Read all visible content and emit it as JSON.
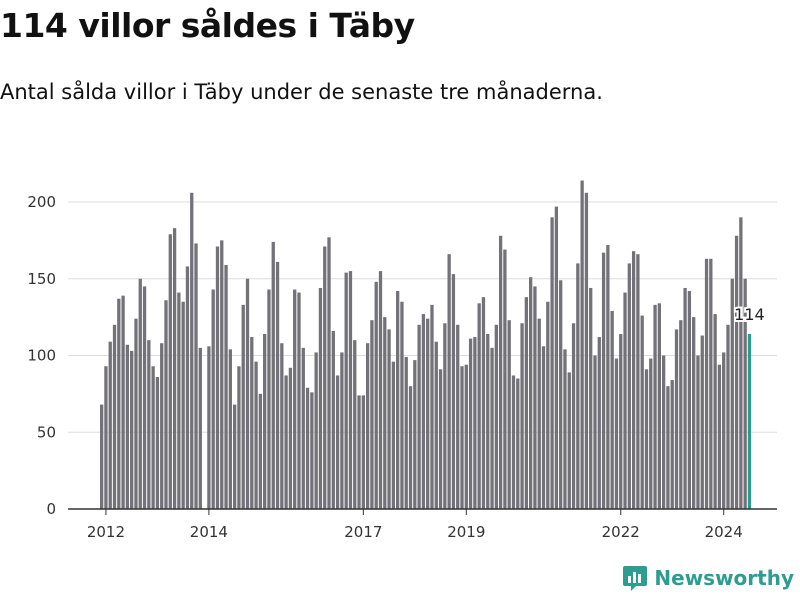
{
  "header": {
    "title": "114 villor såldes i Täby",
    "subtitle": "Antal sålda villor i Täby under de senaste tre månaderna."
  },
  "brand": {
    "name": "Newsworthy"
  },
  "colors": {
    "bar": "#737278",
    "highlight": "#2a9d8f",
    "grid": "#dddddd",
    "axis": "#333333"
  },
  "chart_data": {
    "type": "bar",
    "title": "114 villor såldes i Täby",
    "subtitle": "Antal sålda villor i Täby under de senaste tre månaderna.",
    "xlabel": "",
    "ylabel": "",
    "ylim": [
      0,
      220
    ],
    "yticks": [
      0,
      50,
      100,
      150,
      200
    ],
    "x_start": {
      "year": 2011,
      "month": 12
    },
    "x_ticks": [
      {
        "year": 2012,
        "label": "2012"
      },
      {
        "year": 2014,
        "label": "2014"
      },
      {
        "year": 2017,
        "label": "2017"
      },
      {
        "year": 2019,
        "label": "2019"
      },
      {
        "year": 2022,
        "label": "2022"
      },
      {
        "year": 2024,
        "label": "2024"
      }
    ],
    "highlight_label": "114",
    "values": [
      68,
      93,
      109,
      120,
      137,
      139,
      107,
      103,
      124,
      150,
      145,
      110,
      93,
      86,
      108,
      136,
      179,
      183,
      141,
      135,
      158,
      206,
      173,
      105,
      0,
      106,
      143,
      171,
      175,
      159,
      104,
      68,
      93,
      133,
      150,
      112,
      96,
      75,
      114,
      143,
      174,
      161,
      108,
      87,
      92,
      143,
      141,
      105,
      79,
      76,
      102,
      144,
      171,
      177,
      116,
      87,
      102,
      154,
      155,
      110,
      74,
      74,
      108,
      123,
      148,
      155,
      125,
      117,
      96,
      142,
      135,
      99,
      80,
      97,
      120,
      127,
      124,
      133,
      109,
      91,
      121,
      166,
      153,
      120,
      93,
      94,
      111,
      112,
      134,
      138,
      114,
      105,
      120,
      178,
      169,
      123,
      87,
      85,
      121,
      138,
      151,
      145,
      124,
      106,
      135,
      190,
      197,
      149,
      104,
      89,
      121,
      160,
      214,
      206,
      144,
      100,
      112,
      167,
      172,
      129,
      98,
      114,
      141,
      160,
      168,
      166,
      126,
      91,
      98,
      133,
      134,
      100,
      80,
      84,
      117,
      123,
      144,
      142,
      125,
      100,
      113,
      163,
      163,
      127,
      94,
      102,
      120,
      150,
      178,
      190,
      150,
      114
    ]
  }
}
